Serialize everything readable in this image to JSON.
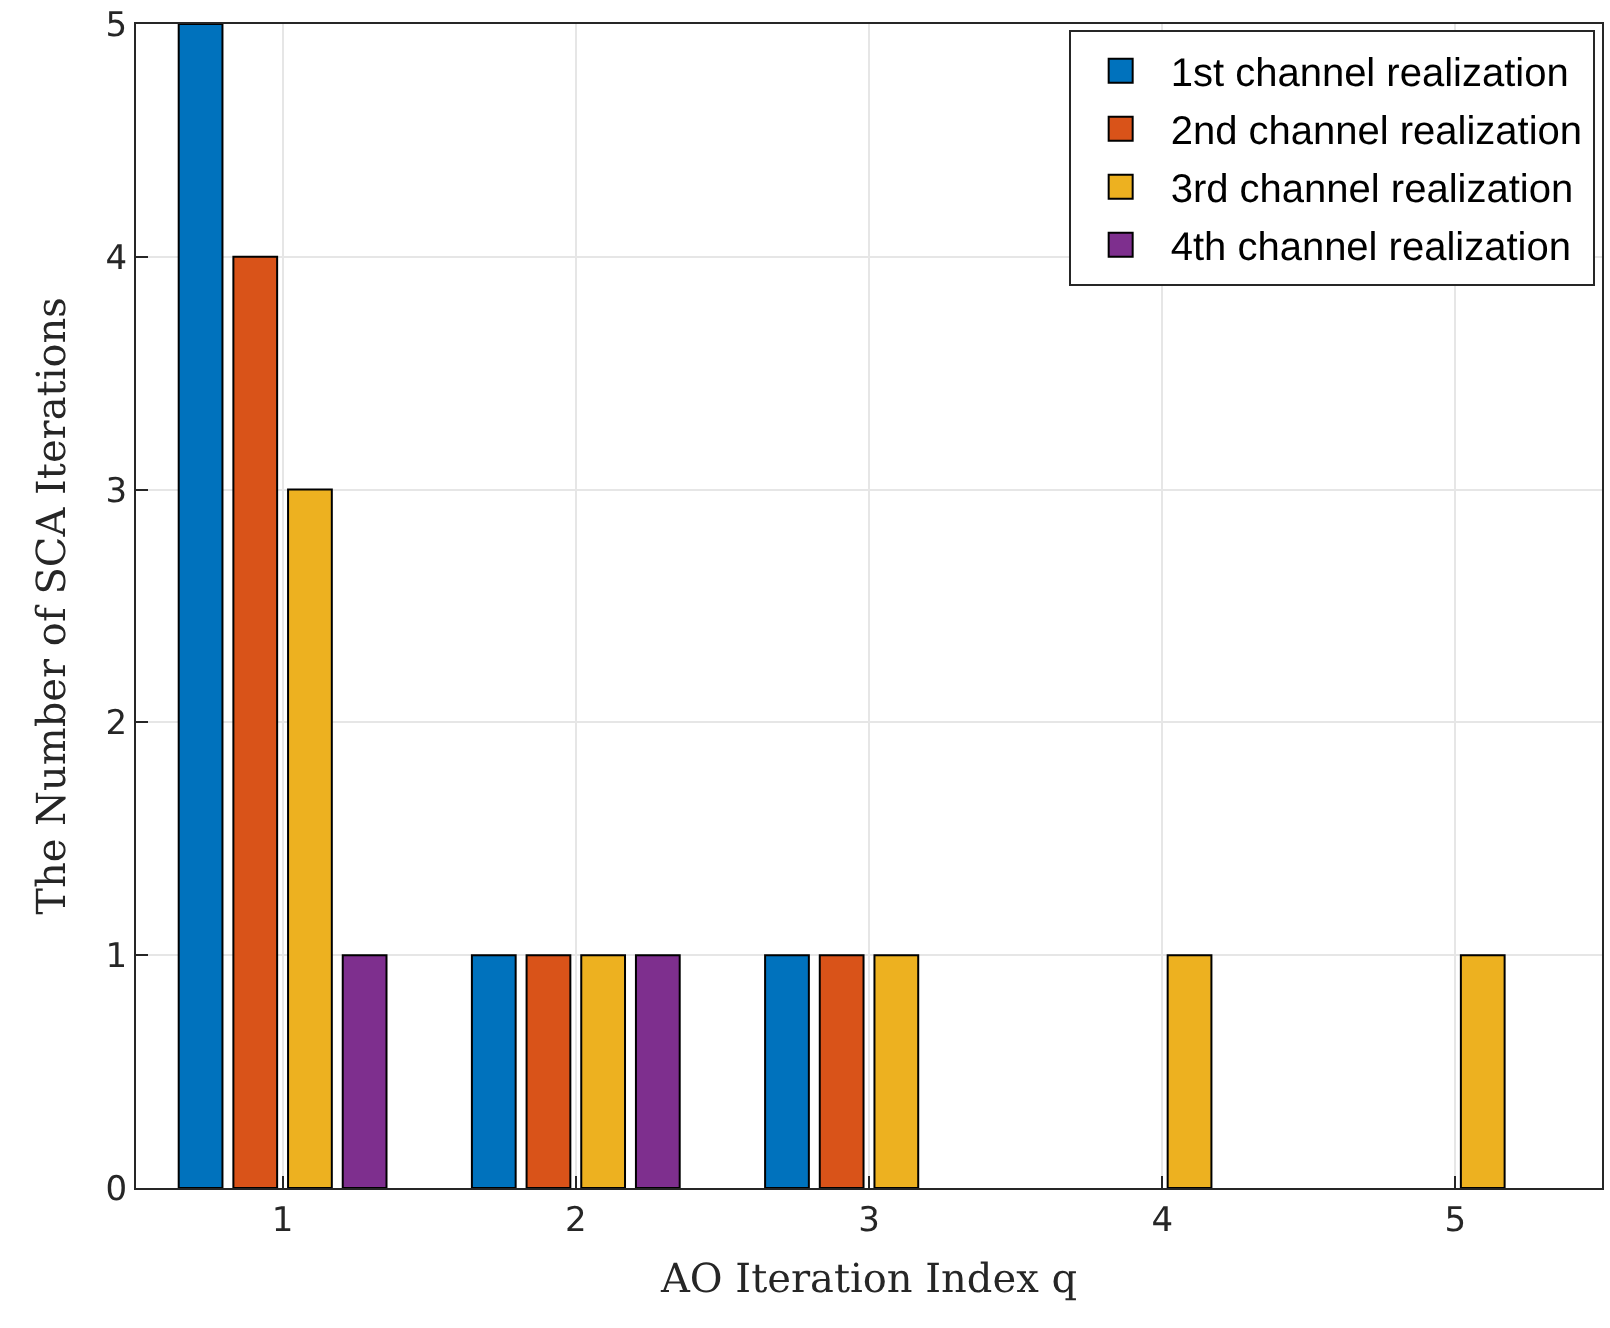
{
  "chart_data": {
    "type": "bar",
    "xlabel": "AO Iteration Index q",
    "ylabel": "The Number of SCA Iterations",
    "x": [
      1,
      2,
      3,
      4,
      5
    ],
    "xlim": [
      0.5,
      5.5
    ],
    "xticks": [
      1,
      2,
      3,
      4,
      5
    ],
    "ylim": [
      0,
      5
    ],
    "yticks": [
      0,
      1,
      2,
      3,
      4,
      5
    ],
    "series": [
      {
        "name": "1st channel realization",
        "color": "#0072bd",
        "values": [
          5,
          1,
          1,
          0,
          0
        ]
      },
      {
        "name": "2nd channel realization",
        "color": "#d95319",
        "values": [
          4,
          1,
          1,
          0,
          0
        ]
      },
      {
        "name": "3rd channel realization",
        "color": "#edb120",
        "values": [
          3,
          1,
          1,
          1,
          1
        ]
      },
      {
        "name": "4th channel realization",
        "color": "#7e2f8e",
        "values": [
          1,
          1,
          0,
          0,
          0
        ]
      }
    ],
    "grid": true,
    "legend": "top right"
  }
}
